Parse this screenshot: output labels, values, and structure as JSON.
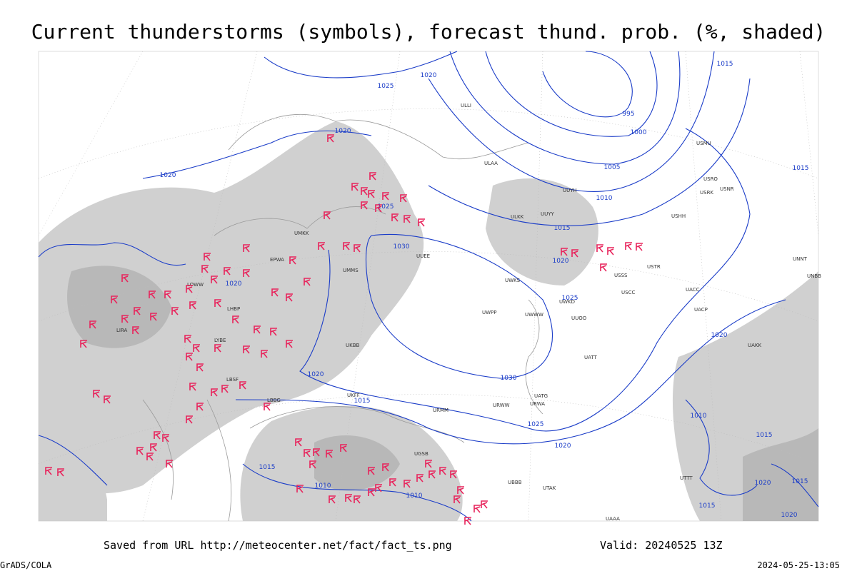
{
  "header": {
    "title": "Current thunderstorms (symbols), forecast thund. prob. (%, shaded)"
  },
  "footer": {
    "source": "Saved from URL http://meteocenter.net/fact/fact_ts.png",
    "valid": "Valid: 20240525 13Z",
    "software": "GrADS/COLA",
    "timestamp": "2024-05-25-13:05"
  },
  "isobar_labels": [
    "1020",
    "1025",
    "1020",
    "995",
    "1000",
    "1005",
    "1010",
    "1015",
    "1015",
    "1020",
    "1020",
    "1025",
    "1030",
    "1020",
    "1025",
    "1030",
    "1020",
    "1015",
    "1025",
    "1020",
    "1015",
    "1010",
    "1010",
    "1010",
    "1015",
    "1020",
    "1015",
    "1020",
    "1015",
    "1015",
    "1020"
  ],
  "station_labels": [
    "ULLI",
    "ULAA",
    "USMU",
    "USRO",
    "USRK",
    "USNR",
    "USHH",
    "ULKK",
    "UUYY",
    "UUYH",
    "UWPP",
    "UWWW",
    "UUOO",
    "UUEE",
    "UWKS",
    "UWKD",
    "USCC",
    "USSS",
    "USTR",
    "UACC",
    "UATT",
    "UAAA",
    "URWW",
    "URWA",
    "UATG",
    "URMM",
    "UKBB",
    "UMMS",
    "UMKK",
    "EPWA",
    "LOWW",
    "LHBP",
    "LIRA",
    "LYBE",
    "LBSF",
    "LBBG",
    "UKFF",
    "UGSB",
    "UTTT",
    "UBBB",
    "UTAK",
    "UAKK",
    "UACP",
    "UNNT",
    "UNBB"
  ]
}
